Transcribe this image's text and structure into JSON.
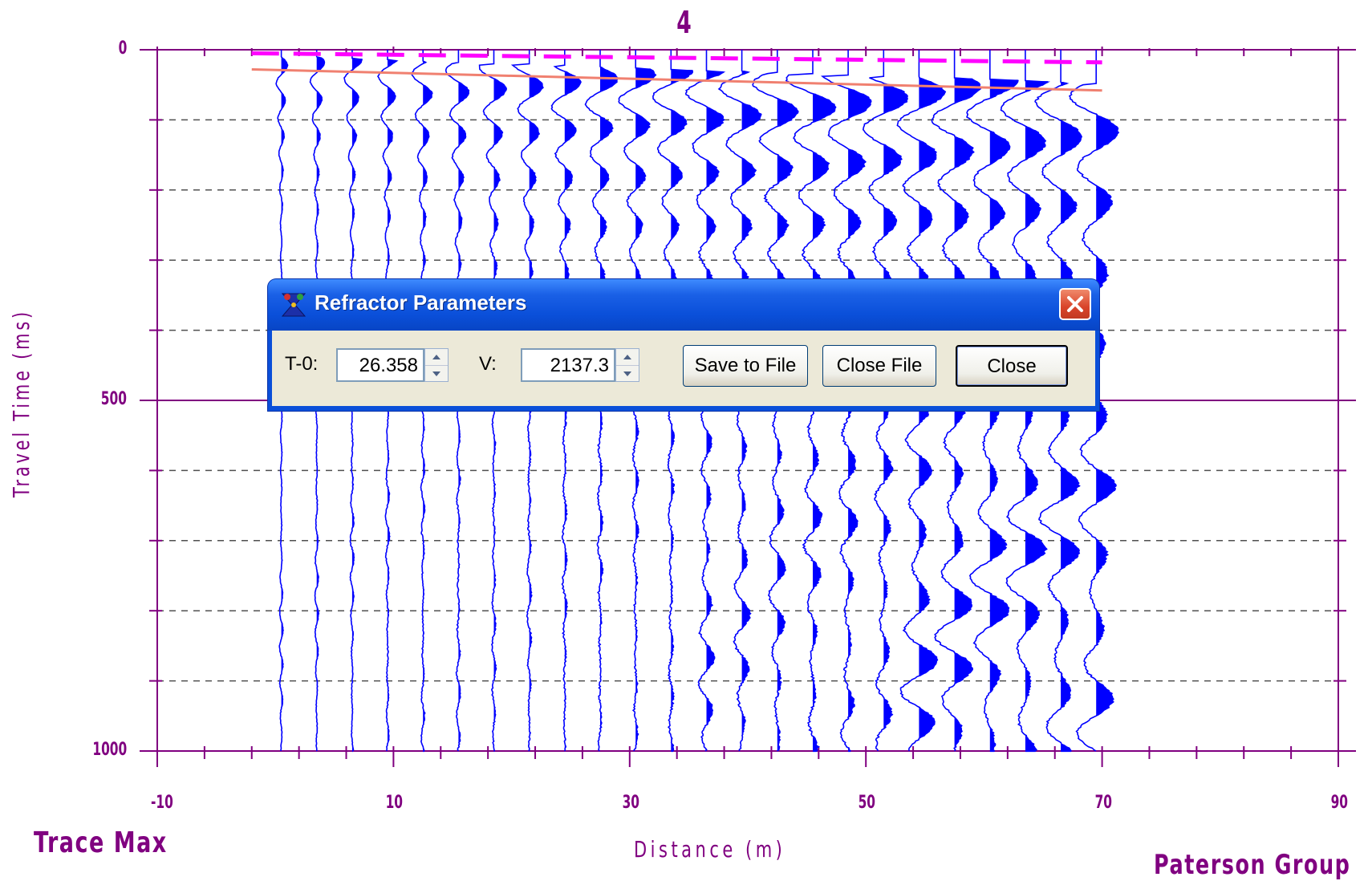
{
  "plot": {
    "title": "4",
    "xlabel": "Distance (m)",
    "ylabel": "Travel Time (ms)",
    "x_ticks": [
      "-10",
      "10",
      "30",
      "50",
      "70",
      "90"
    ],
    "y_ticks": [
      "0",
      "500",
      "1000"
    ],
    "footer_left": "Trace Max",
    "footer_right": "Paterson Group"
  },
  "chart_data": {
    "type": "line",
    "title": "4",
    "xlabel": "Distance (m)",
    "ylabel": "Travel Time (ms)",
    "xlim": [
      -10,
      90
    ],
    "ylim": [
      0,
      1000
    ],
    "y_inverted": true,
    "grid": "dashed horizontal every 100 ms",
    "traces": {
      "count": 24,
      "first_offset_m": 0.5,
      "spacing_m": 3,
      "color": "#0000ff"
    },
    "series": [
      {
        "name": "",
        "x": [
          -2,
          70
        ],
        "y": [
          28,
          58
        ],
        "style": "solid",
        "color": "#f08070"
      },
      {
        "name": "",
        "x": [
          -2,
          70
        ],
        "y": [
          5,
          18
        ],
        "style": "dashed",
        "color": "#ff00ff"
      }
    ]
  },
  "colors": {
    "axis": "#800080",
    "trace": "#0000ff",
    "dialog_title_bg": "#0a4fd9",
    "dialog_client_bg": "#ece9d8"
  },
  "dialog": {
    "title": "Refractor Parameters",
    "icon": "refractor-app-icon",
    "t0_label": "T-0:",
    "t0_value": "26.358",
    "v_label": "V:",
    "v_value": "2137.3",
    "save_label": "Save to File",
    "close_file_label": "Close File",
    "close_label": "Close"
  }
}
